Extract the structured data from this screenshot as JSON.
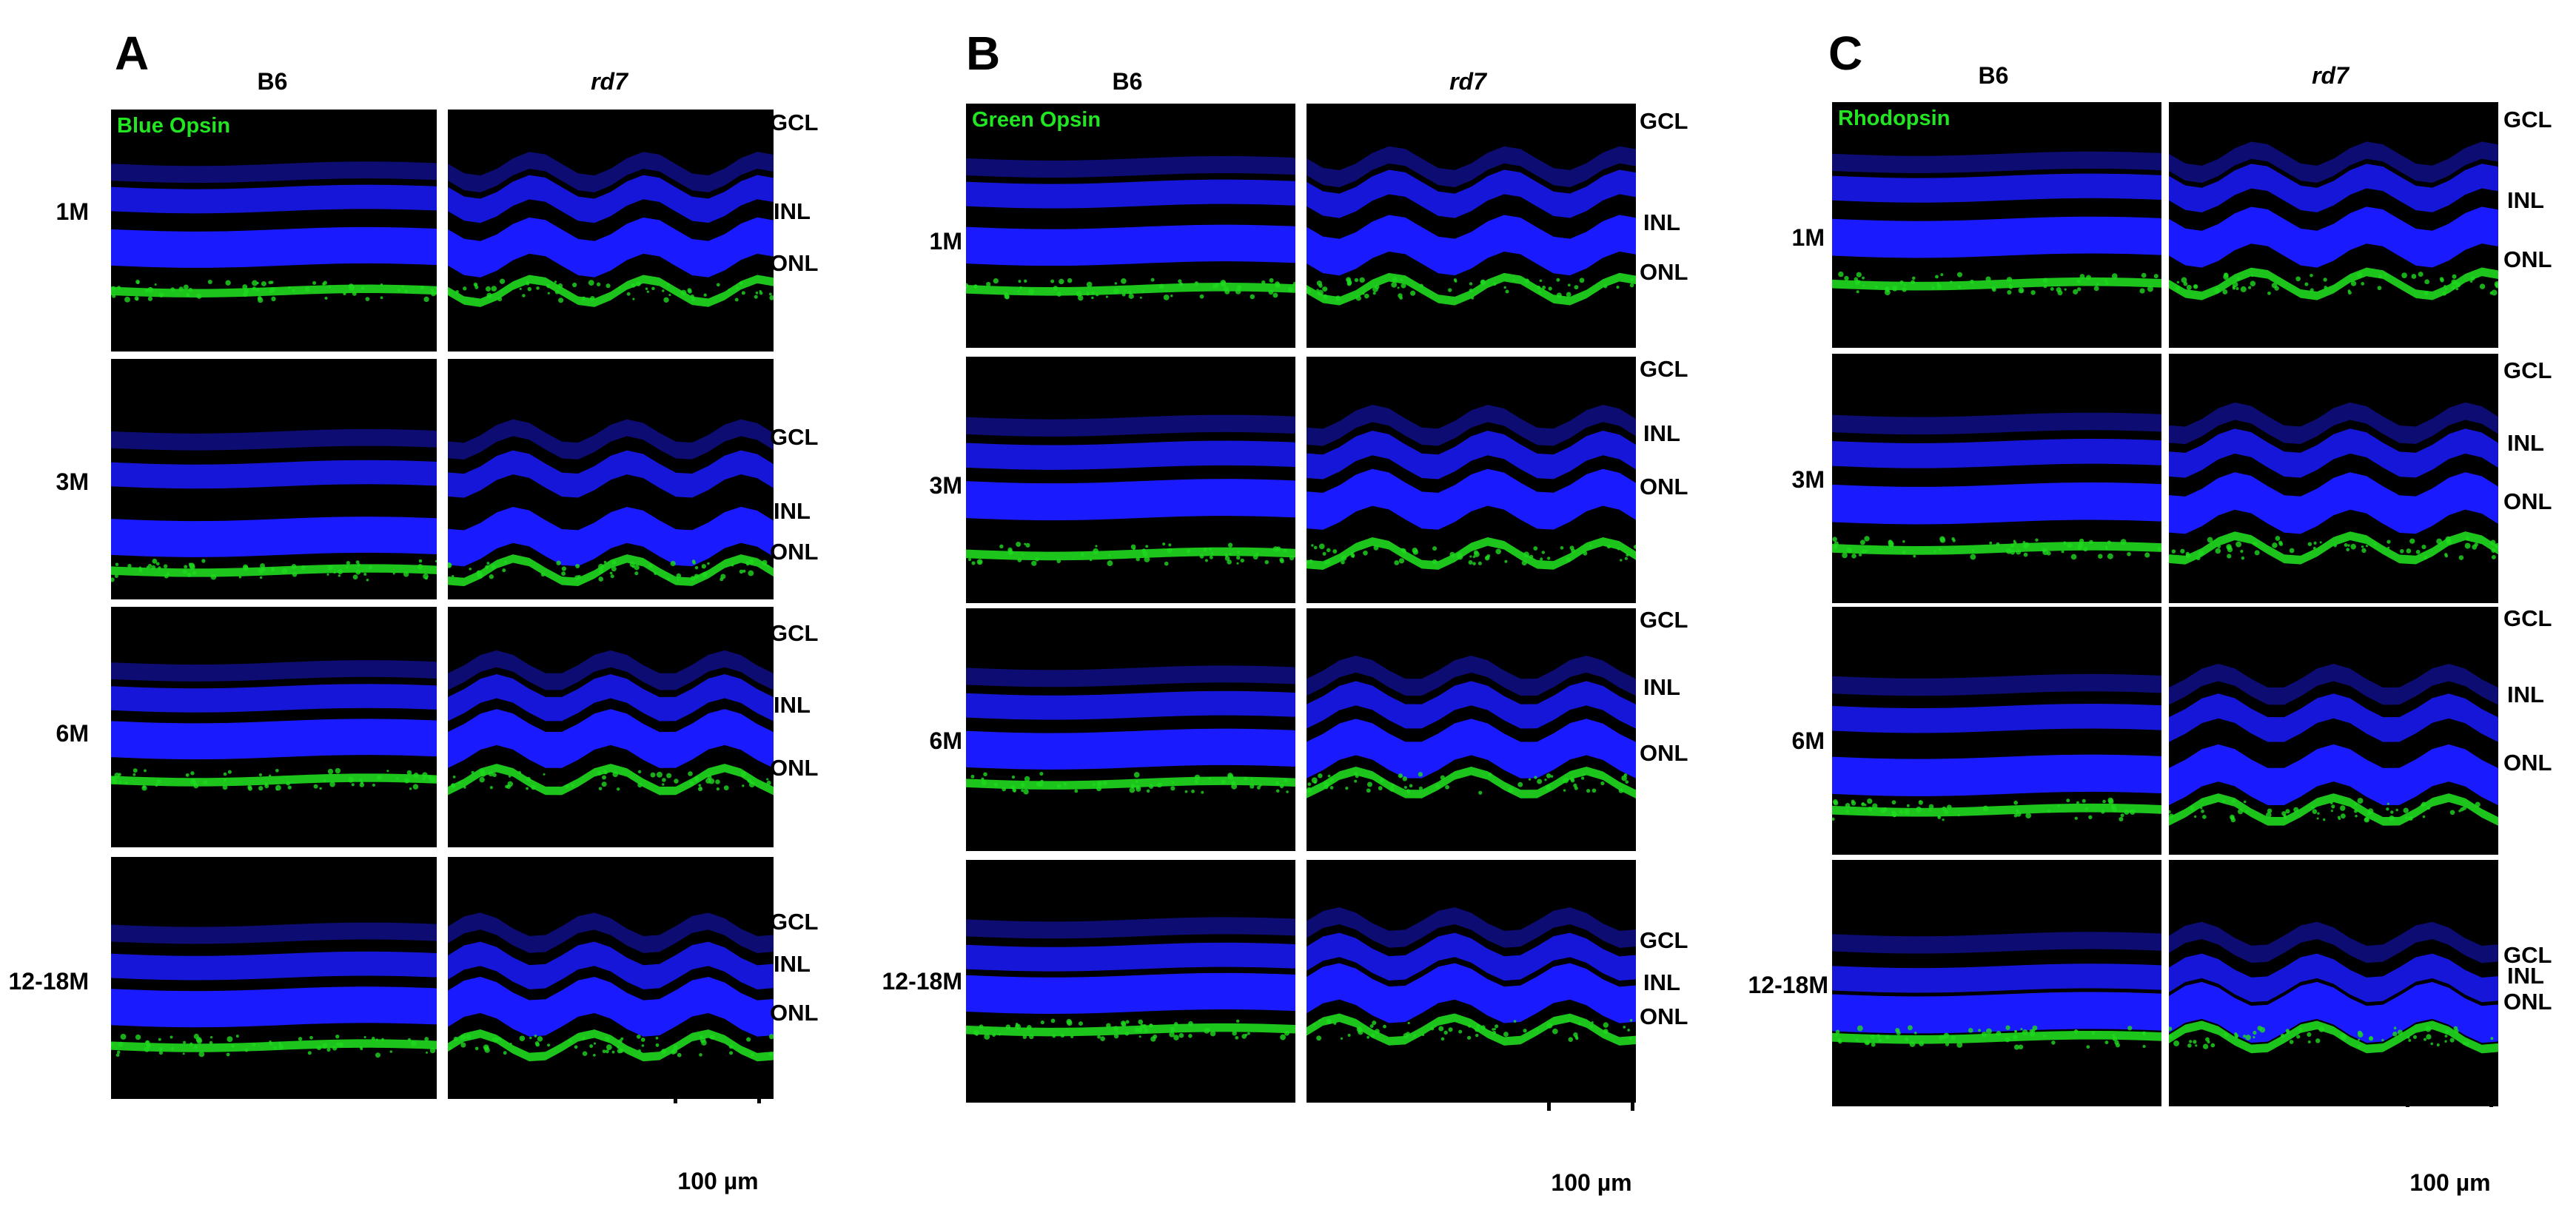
{
  "panels": [
    {
      "letter": "A",
      "stain": "Blue Opsin",
      "col_b6": "B6",
      "col_rd7": "rd7",
      "rows": [
        "1M",
        "3M",
        "6M",
        "12-18M"
      ],
      "layers": [
        [
          "GCL",
          "INL",
          "ONL"
        ],
        [
          "GCL",
          "INL",
          "ONL"
        ],
        [
          "GCL",
          "INL",
          "ONL"
        ],
        [
          "GCL",
          "INL",
          "ONL"
        ]
      ],
      "scale": "100 µm"
    },
    {
      "letter": "B",
      "stain": "Green Opsin",
      "col_b6": "B6",
      "col_rd7": "rd7",
      "rows": [
        "1M",
        "3M",
        "6M",
        "12-18M"
      ],
      "layers": [
        [
          "GCL",
          "INL",
          "ONL"
        ],
        [
          "GCL",
          "INL",
          "ONL"
        ],
        [
          "GCL",
          "INL",
          "ONL"
        ],
        [
          "GCL",
          "INL",
          "ONL"
        ]
      ],
      "scale": "100 µm"
    },
    {
      "letter": "C",
      "stain": "Rhodopsin",
      "col_b6": "B6",
      "col_rd7": "rd7",
      "rows": [
        "1M",
        "3M",
        "6M",
        "12-18M"
      ],
      "layers": [
        [
          "GCL",
          "INL",
          "ONL"
        ],
        [
          "GCL",
          "INL",
          "ONL"
        ],
        [
          "GCL",
          "INL",
          "ONL"
        ],
        [
          "GCL",
          "INL",
          "ONL"
        ]
      ],
      "scale": "100 µm"
    }
  ],
  "colors": {
    "nuclei": "#1a1aff",
    "opsin": "#1fd91f",
    "background": "#000000"
  }
}
